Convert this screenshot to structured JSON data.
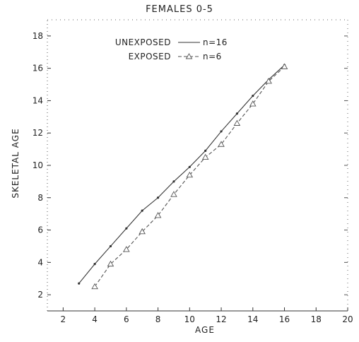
{
  "chart_data": {
    "type": "line",
    "title": "FEMALES 0-5",
    "xlabel": "AGE",
    "ylabel": "SKELETAL AGE",
    "xlim": [
      1,
      20
    ],
    "ylim": [
      1,
      19
    ],
    "xticks": [
      2,
      4,
      6,
      8,
      10,
      12,
      14,
      16,
      18,
      20
    ],
    "yticks": [
      2,
      4,
      6,
      8,
      10,
      12,
      14,
      16,
      18
    ],
    "grid": false,
    "legend_position": "top-left",
    "series": [
      {
        "name": "UNEXPOSED",
        "n_label": "n=16",
        "style": "solid",
        "color": "#333333",
        "x": [
          3,
          4,
          5,
          6,
          7,
          8,
          9,
          10,
          11,
          12,
          13,
          14,
          15,
          16
        ],
        "y": [
          2.7,
          3.9,
          5.0,
          6.1,
          7.2,
          8.0,
          9.0,
          9.9,
          10.9,
          12.1,
          13.2,
          14.3,
          15.3,
          16.2
        ]
      },
      {
        "name": "EXPOSED",
        "n_label": "n=6",
        "style": "dashed",
        "color": "#555555",
        "x": [
          4,
          5,
          6,
          7,
          8,
          9,
          10,
          11,
          12,
          13,
          14,
          15,
          16
        ],
        "y": [
          2.5,
          3.9,
          4.8,
          5.9,
          6.9,
          8.2,
          9.4,
          10.5,
          11.3,
          12.6,
          13.8,
          15.2,
          16.1
        ]
      }
    ]
  }
}
